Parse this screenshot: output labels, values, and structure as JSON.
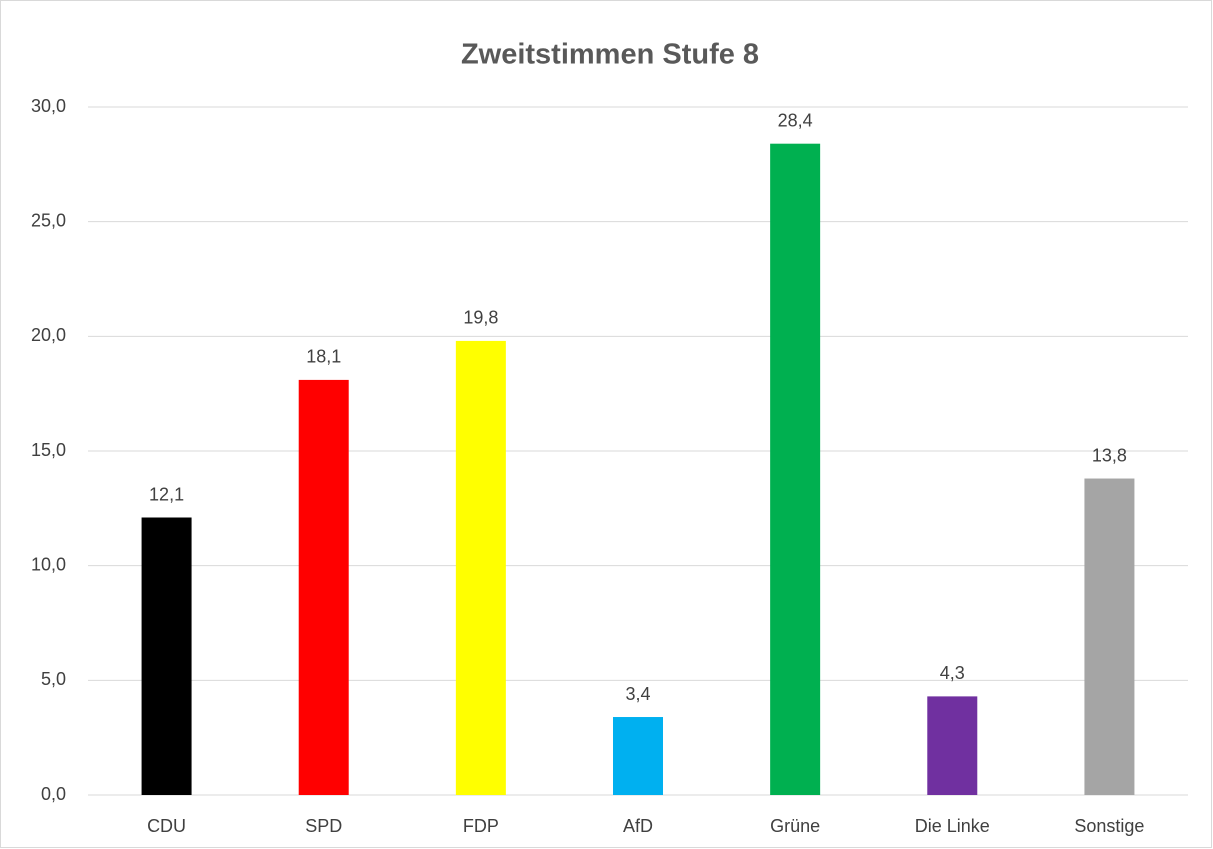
{
  "chart_data": {
    "type": "bar",
    "title": "Zweitstimmen Stufe 8",
    "categories": [
      "CDU",
      "SPD",
      "FDP",
      "AfD",
      "Grüne",
      "Die Linke",
      "Sonstige"
    ],
    "values": [
      12.1,
      18.1,
      19.8,
      3.4,
      28.4,
      4.3,
      13.8
    ],
    "value_labels": [
      "12,1",
      "18,1",
      "19,8",
      "3,4",
      "28,4",
      "4,3",
      "13,8"
    ],
    "colors": [
      "#000000",
      "#ff0000",
      "#ffff00",
      "#00b0f0",
      "#00b050",
      "#7030a0",
      "#a5a5a5"
    ],
    "ylim": [
      0,
      30
    ],
    "yticks": [
      {
        "value": 0,
        "label": "0,0"
      },
      {
        "value": 5,
        "label": "5,0"
      },
      {
        "value": 10,
        "label": "10,0"
      },
      {
        "value": 15,
        "label": "15,0"
      },
      {
        "value": 20,
        "label": "20,0"
      },
      {
        "value": 25,
        "label": "25,0"
      },
      {
        "value": 30,
        "label": "30,0"
      }
    ],
    "grid": true
  }
}
